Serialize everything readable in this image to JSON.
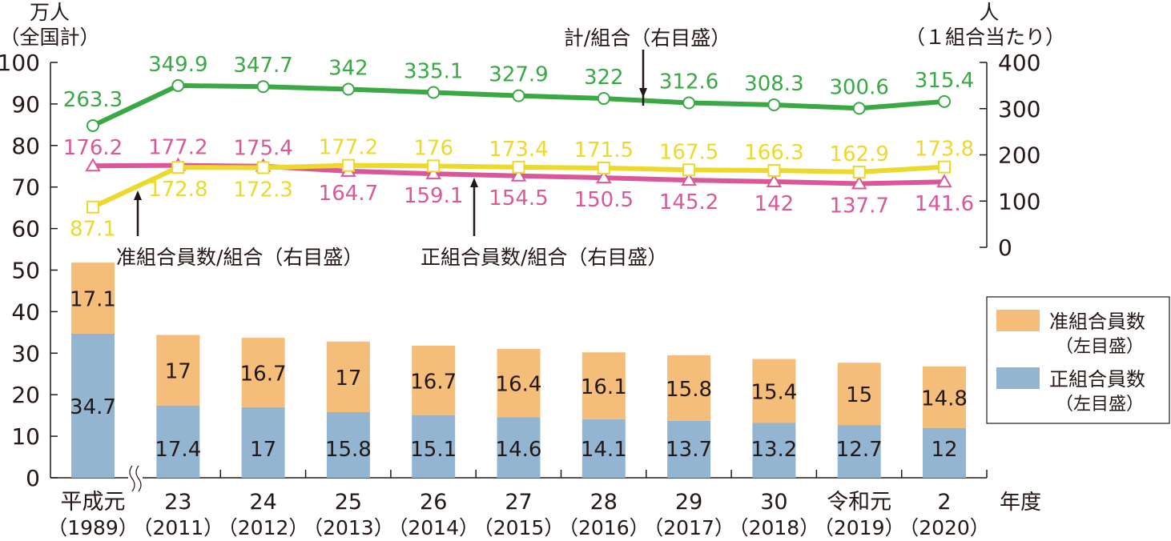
{
  "chart_data": {
    "type": "bar+line",
    "left_axis": {
      "unit": "万人",
      "sublabel": "（全国計）",
      "ticks": [
        0,
        10,
        20,
        30,
        40,
        50,
        60,
        70,
        80,
        90,
        100
      ],
      "range": [
        0,
        100
      ]
    },
    "right_axis": {
      "unit": "人",
      "sublabel": "（１組合当たり）",
      "ticks": [
        0,
        100,
        200,
        300,
        400
      ],
      "range": [
        0,
        400
      ]
    },
    "x_unit": "年度",
    "categories": [
      {
        "era": "平成元",
        "year": "（1989）"
      },
      {
        "era": "23",
        "year": "（2011）"
      },
      {
        "era": "24",
        "year": "（2012）"
      },
      {
        "era": "25",
        "year": "（2013）"
      },
      {
        "era": "26",
        "year": "（2014）"
      },
      {
        "era": "27",
        "year": "（2015）"
      },
      {
        "era": "28",
        "year": "（2016）"
      },
      {
        "era": "29",
        "year": "（2017）"
      },
      {
        "era": "30",
        "year": "（2018）"
      },
      {
        "era": "令和元",
        "year": "（2019）"
      },
      {
        "era": "2",
        "year": "（2020）"
      }
    ],
    "bar_series": [
      {
        "name": "正組合員数",
        "name_sub": "（左目盛）",
        "color": "#93b5d2",
        "values": [
          34.7,
          17.4,
          17.0,
          15.8,
          15.1,
          14.6,
          14.1,
          13.7,
          13.2,
          12.7,
          12.0
        ]
      },
      {
        "name": "准組合員数",
        "name_sub": "（左目盛）",
        "color": "#f5bd7a",
        "values": [
          17.1,
          17.0,
          16.7,
          17.0,
          16.7,
          16.4,
          16.1,
          15.8,
          15.4,
          15.0,
          14.8
        ]
      }
    ],
    "line_series": [
      {
        "name": "計/組合（右目盛）",
        "color": "#3aa845",
        "marker": "circle",
        "values": [
          263.3,
          349.9,
          347.7,
          342.0,
          335.1,
          327.9,
          322.0,
          312.6,
          308.3,
          300.6,
          315.4
        ]
      },
      {
        "name": "正組合員数/組合（右目盛）",
        "color": "#d9589a",
        "marker": "triangle",
        "values": [
          176.2,
          177.2,
          175.4,
          164.7,
          159.1,
          154.5,
          150.5,
          145.2,
          142.0,
          137.7,
          141.6
        ]
      },
      {
        "name": "准組合員数/組合（右目盛）",
        "color": "#ecd92c",
        "marker": "square",
        "values": [
          87.1,
          172.8,
          172.3,
          177.2,
          176.0,
          173.4,
          171.5,
          167.5,
          166.3,
          162.9,
          173.8
        ]
      }
    ],
    "axis_break": "between 平成元 and 23",
    "legend": "right",
    "grid": false
  }
}
